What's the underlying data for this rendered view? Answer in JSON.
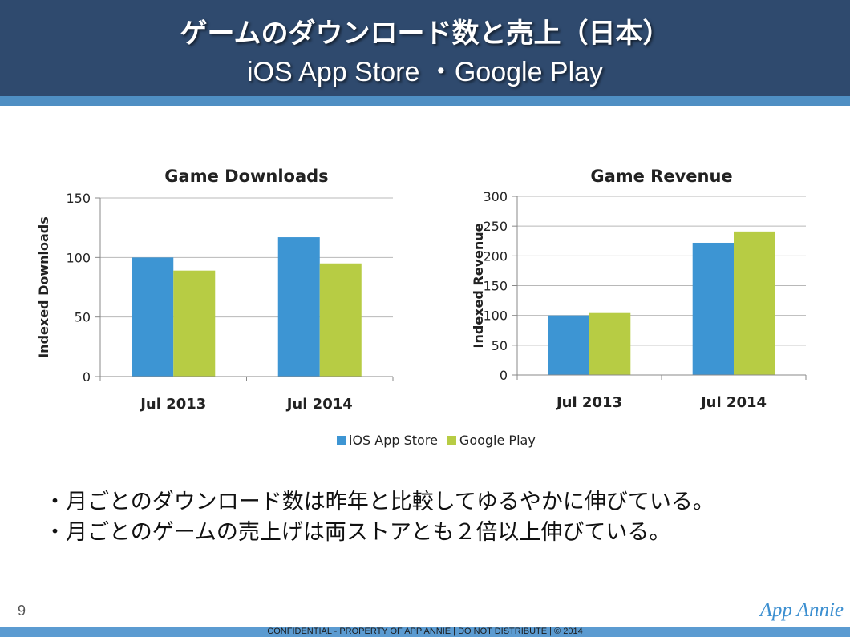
{
  "header": {
    "title": "ゲームのダウンロード数と売上（日本）",
    "subtitle": "iOS App Store ・Google Play"
  },
  "legend": {
    "ios": "iOS App Store",
    "google": "Google Play"
  },
  "colors": {
    "ios": "#3d95d3",
    "google": "#b7cc44",
    "header_bg": "#2f4a6e",
    "stripe": "#4f8fc3"
  },
  "chart_data": [
    {
      "type": "bar",
      "title": "Game Downloads",
      "ylabel": "Indexed Downloads",
      "xlabel": "",
      "categories": [
        "Jul 2013",
        "Jul 2014"
      ],
      "series": [
        {
          "name": "iOS App Store",
          "values": [
            100,
            117
          ]
        },
        {
          "name": "Google Play",
          "values": [
            89,
            95
          ]
        }
      ],
      "ylim": [
        0,
        150
      ],
      "yticks": [
        0,
        50,
        100,
        150
      ],
      "grid": true
    },
    {
      "type": "bar",
      "title": "Game Revenue",
      "ylabel": "Indexed Revenue",
      "xlabel": "",
      "categories": [
        "Jul 2013",
        "Jul 2014"
      ],
      "series": [
        {
          "name": "iOS App Store",
          "values": [
            100,
            222
          ]
        },
        {
          "name": "Google Play",
          "values": [
            104,
            241
          ]
        }
      ],
      "ylim": [
        0,
        300
      ],
      "yticks": [
        0,
        50,
        100,
        150,
        200,
        250,
        300
      ],
      "grid": true
    }
  ],
  "bullets": [
    "・月ごとのダウンロード数は昨年と比較してゆるやかに伸びている。",
    "・月ごとのゲームの売上げは両ストアとも２倍以上伸びている。"
  ],
  "footer": {
    "page_number": "9",
    "logo": "App Annie",
    "confidential": "CONFIDENTIAL - PROPERTY OF APP ANNIE  |  DO NOT DISTRIBUTE  |  © 2014"
  }
}
